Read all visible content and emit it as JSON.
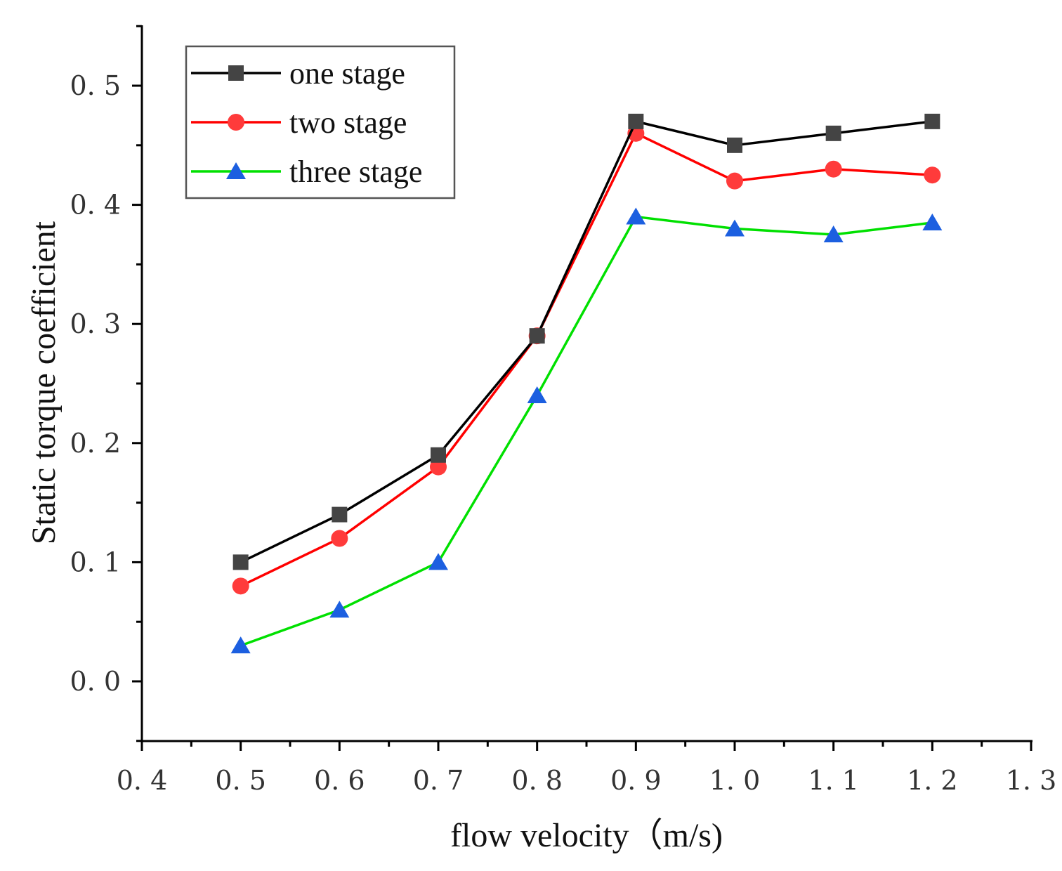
{
  "chart_data": {
    "type": "line",
    "title": "",
    "xlabel": "flow velocity（m/s)",
    "ylabel": "Static torque coefficient",
    "x": [
      0.5,
      0.6,
      0.7,
      0.8,
      0.9,
      1.0,
      1.1,
      1.2
    ],
    "xlim": [
      0.4,
      1.3
    ],
    "ylim": [
      -0.05,
      0.55
    ],
    "xticks": [
      "0.4",
      "0.5",
      "0.6",
      "0.7",
      "0.8",
      "0.9",
      "1.0",
      "1.1",
      "1.2",
      "1.3"
    ],
    "yticks": [
      "0.0",
      "0.1",
      "0.2",
      "0.3",
      "0.4",
      "0.5"
    ],
    "legend_position": "top-left",
    "series": [
      {
        "name": "one stage",
        "color": "#000000",
        "marker_color": "#444444",
        "marker": "square",
        "values": [
          0.1,
          0.14,
          0.19,
          0.29,
          0.47,
          0.45,
          0.46,
          0.47
        ]
      },
      {
        "name": "two stage",
        "color": "#ff0000",
        "marker_color": "#ff3b3b",
        "marker": "circle",
        "values": [
          0.08,
          0.12,
          0.18,
          0.29,
          0.46,
          0.42,
          0.43,
          0.425
        ]
      },
      {
        "name": "three stage",
        "color": "#00e000",
        "marker_color": "#1c5fe0",
        "marker": "triangle",
        "values": [
          0.03,
          0.06,
          0.1,
          0.24,
          0.39,
          0.38,
          0.375,
          0.385
        ]
      }
    ]
  }
}
